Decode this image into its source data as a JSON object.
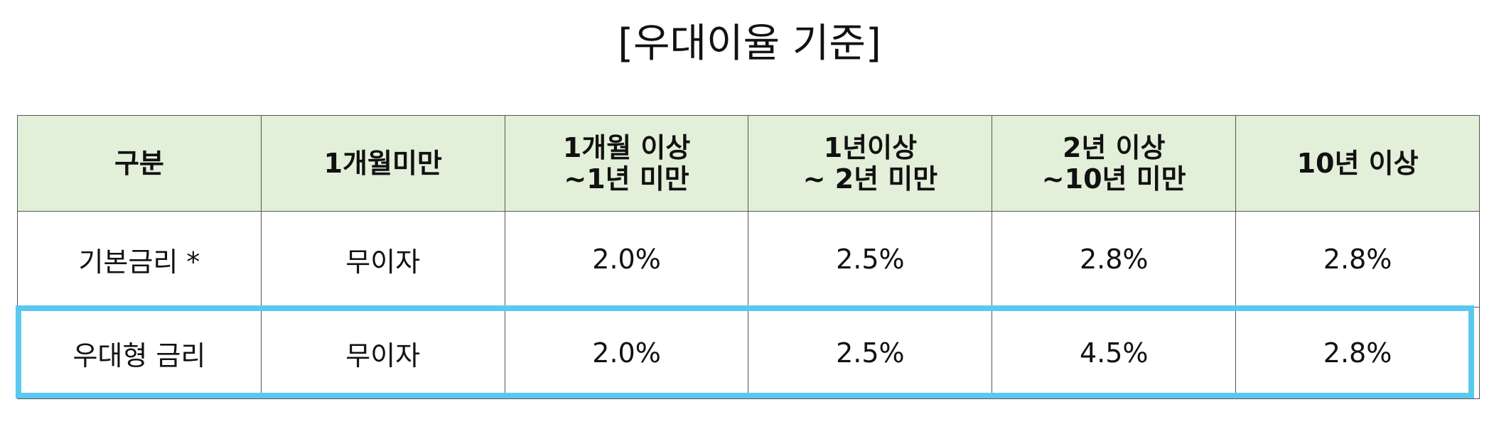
{
  "title": "[우대이율 기준]",
  "table": {
    "header": [
      "구분",
      "1개월미만",
      "1개월 이상\n~1년 미만",
      "1년이상\n~ 2년 미만",
      "2년 이상\n~10년 미만",
      "10년 이상"
    ],
    "rows": [
      [
        "기본금리 *",
        "무이자",
        "2.0%",
        "2.5%",
        "2.8%",
        "2.8%"
      ],
      [
        "우대형 금리",
        "무이자",
        "2.0%",
        "2.5%",
        "4.5%",
        "2.8%"
      ]
    ],
    "highlighted_row": 1
  }
}
